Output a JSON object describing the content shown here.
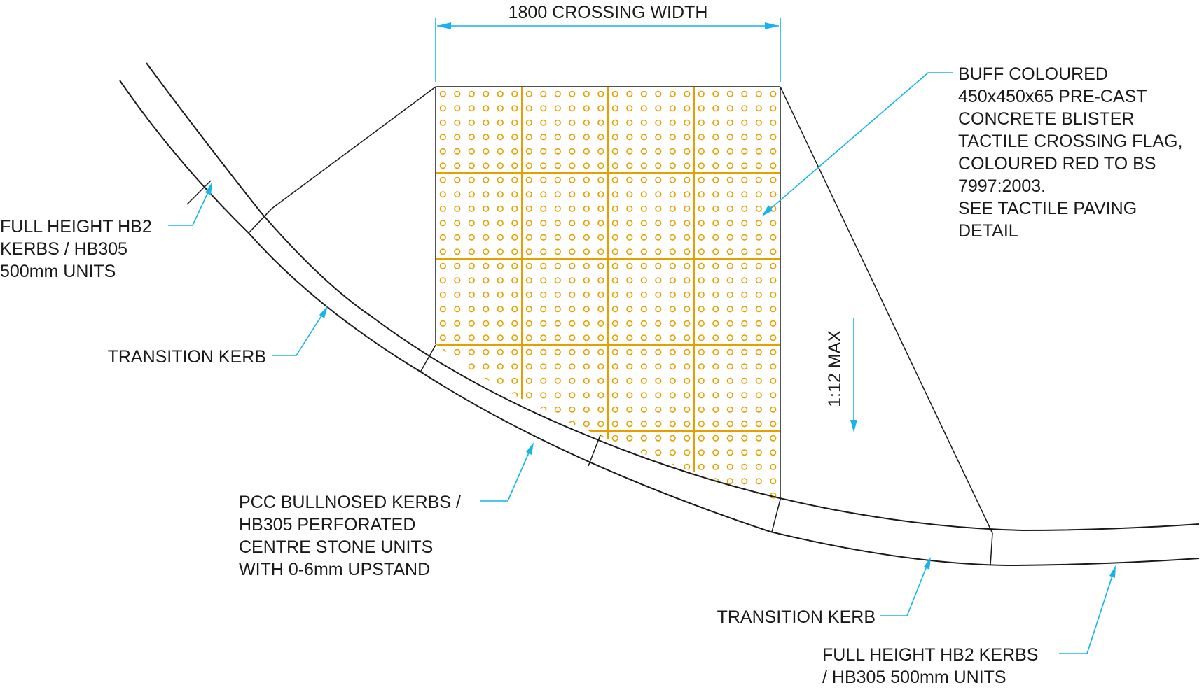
{
  "labels": {
    "crossing_width": "1800 CROSSING WIDTH",
    "gradient": "1:12 MAX",
    "tactile_flag": [
      "BUFF COLOURED",
      "450x450x65 PRE-CAST",
      "CONCRETE BLISTER",
      "TACTILE CROSSING FLAG,",
      "COLOURED RED TO BS",
      "7997:2003.",
      "SEE TACTILE PAVING",
      "DETAIL"
    ],
    "full_height_left": [
      "FULL HEIGHT HB2",
      "KERBS / HB305",
      "500mm UNITS"
    ],
    "transition_left": "TRANSITION KERB",
    "bullnosed": [
      "PCC BULLNOSED KERBS /",
      "HB305 PERFORATED",
      "CENTRE STONE UNITS",
      "WITH 0-6mm UPSTAND"
    ],
    "transition_right": "TRANSITION KERB",
    "full_height_right": [
      "FULL HEIGHT HB2 KERBS",
      "/ HB305 500mm UNITS"
    ]
  },
  "colors": {
    "tactile": "#e5a000",
    "dimension": "#16b4e8",
    "linework": "#1a1a1a"
  },
  "tactile_paving": {
    "tiles_across": 4,
    "tiles_down": 5,
    "studs_per_tile_side": 6
  }
}
